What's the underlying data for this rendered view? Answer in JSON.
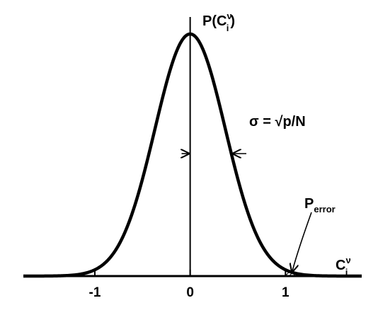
{
  "chart_data": {
    "type": "line",
    "series": [
      {
        "distribution": "gaussian",
        "mean": 0,
        "sigma": 0.37
      }
    ],
    "xlim": [
      -1.75,
      1.8
    ],
    "ylim": [
      0,
      1
    ],
    "x_ticks": [
      {
        "value": -1,
        "label": "-1"
      },
      {
        "value": 0,
        "label": "0"
      },
      {
        "value": 1,
        "label": "1"
      }
    ],
    "y_axis_label": {
      "base": "P(C",
      "sub": "i",
      "sup": "ν",
      "close": ")"
    },
    "x_axis_label": {
      "base": "C",
      "sub": "i",
      "sup": "ν"
    },
    "annotations": {
      "sigma_label": "σ = √p/N",
      "p_error": {
        "base": "P",
        "sub": "error"
      }
    },
    "shaded_region": {
      "from": 1,
      "to": 1.8
    },
    "grid": false,
    "legend": "none"
  }
}
